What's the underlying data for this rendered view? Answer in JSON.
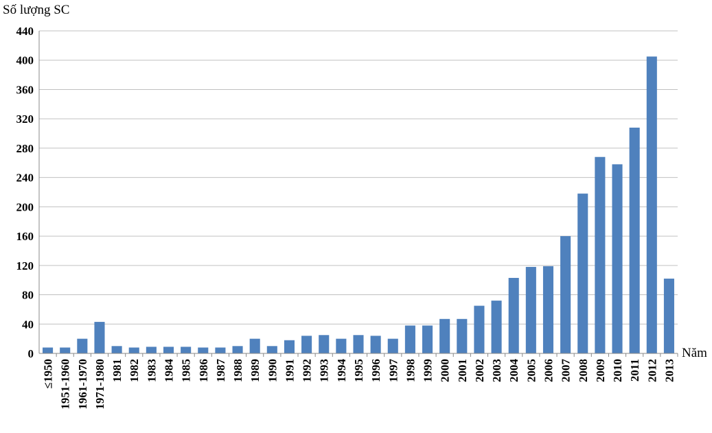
{
  "chart_data": {
    "type": "bar",
    "ylabel": "Số lượng SC",
    "xlabel": "Năm",
    "ylim": [
      0,
      440
    ],
    "yticks": [
      0,
      40,
      80,
      120,
      160,
      200,
      240,
      280,
      320,
      360,
      400,
      440
    ],
    "grid": true,
    "bar_color": "#4f81bd",
    "grid_color": "#c0c0c0",
    "categories": [
      "≤1950",
      "1951-1960",
      "1961-1970",
      "1971-1980",
      "1981",
      "1982",
      "1983",
      "1984",
      "1985",
      "1986",
      "1987",
      "1988",
      "1989",
      "1990",
      "1991",
      "1992",
      "1993",
      "1994",
      "1995",
      "1996",
      "1997",
      "1998",
      "1999",
      "2000",
      "2001",
      "2002",
      "2003",
      "2004",
      "2005",
      "2006",
      "2007",
      "2008",
      "2009",
      "2010",
      "2011",
      "2012",
      "2013"
    ],
    "values": [
      8,
      8,
      20,
      43,
      10,
      8,
      9,
      9,
      9,
      8,
      8,
      10,
      20,
      10,
      18,
      24,
      25,
      20,
      25,
      24,
      20,
      38,
      38,
      47,
      47,
      65,
      72,
      103,
      118,
      119,
      160,
      218,
      268,
      258,
      308,
      405,
      102
    ]
  }
}
